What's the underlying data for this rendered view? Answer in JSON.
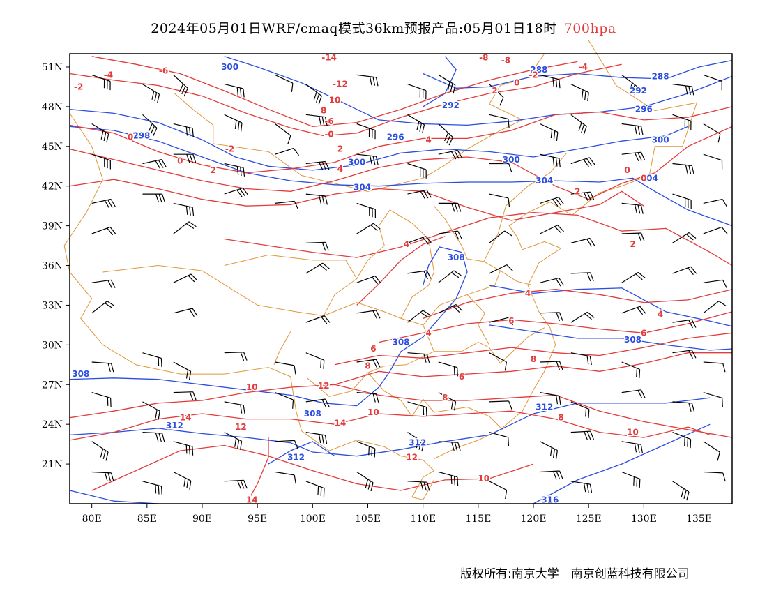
{
  "title": {
    "main": "2024年05月01日WRF/cmaq模式36km预报产品:05月01日18时",
    "level": "700hpa"
  },
  "axes": {
    "lat_labels": [
      "51N",
      "48N",
      "45N",
      "42N",
      "39N",
      "36N",
      "33N",
      "30N",
      "27N",
      "24N",
      "21N"
    ],
    "lon_labels": [
      "80E",
      "85E",
      "90E",
      "95E",
      "100E",
      "105E",
      "110E",
      "115E",
      "120E",
      "125E",
      "130E",
      "135E"
    ],
    "lon_range": [
      78,
      138
    ],
    "lat_range": [
      18,
      52
    ]
  },
  "colors": {
    "geopotential": "#2b4de0",
    "temperature": "#e23b3b",
    "border": "#e0963a",
    "barb": "#000000"
  },
  "contour_labels": {
    "geopotential": [
      {
        "text": "300",
        "lon": 92.5,
        "lat": 51.0
      },
      {
        "text": "288",
        "lon": 120.5,
        "lat": 50.8
      },
      {
        "text": "288",
        "lon": 131.5,
        "lat": 50.3
      },
      {
        "text": "292",
        "lon": 129.5,
        "lat": 49.2
      },
      {
        "text": "292",
        "lon": 112.5,
        "lat": 48.1
      },
      {
        "text": "296",
        "lon": 130.0,
        "lat": 47.8
      },
      {
        "text": "298",
        "lon": 84.5,
        "lat": 45.8
      },
      {
        "text": "296",
        "lon": 107.5,
        "lat": 45.7
      },
      {
        "text": "300",
        "lon": 131.5,
        "lat": 45.5
      },
      {
        "text": "300",
        "lon": 104.0,
        "lat": 43.8
      },
      {
        "text": "300",
        "lon": 118.0,
        "lat": 44.0
      },
      {
        "text": "304",
        "lon": 104.5,
        "lat": 41.9
      },
      {
        "text": "304",
        "lon": 121.0,
        "lat": 42.4
      },
      {
        "text": "304",
        "lon": 130.5,
        "lat": 42.6
      },
      {
        "text": "308",
        "lon": 113.0,
        "lat": 36.6
      },
      {
        "text": "308",
        "lon": 108.0,
        "lat": 30.2
      },
      {
        "text": "308",
        "lon": 129.0,
        "lat": 30.4
      },
      {
        "text": "308",
        "lon": 79.0,
        "lat": 27.8
      },
      {
        "text": "308",
        "lon": 100.0,
        "lat": 24.8
      },
      {
        "text": "312",
        "lon": 87.5,
        "lat": 23.9
      },
      {
        "text": "312",
        "lon": 98.5,
        "lat": 21.5
      },
      {
        "text": "312",
        "lon": 109.5,
        "lat": 22.6
      },
      {
        "text": "312",
        "lon": 121.0,
        "lat": 25.3
      },
      {
        "text": "316",
        "lon": 121.5,
        "lat": 18.3
      }
    ],
    "temperature": [
      {
        "text": "-14",
        "lon": 101.5,
        "lat": 51.7
      },
      {
        "text": "-8",
        "lon": 115.5,
        "lat": 51.7
      },
      {
        "text": "-8",
        "lon": 117.5,
        "lat": 51.5
      },
      {
        "text": "-4",
        "lon": 124.5,
        "lat": 51.0
      },
      {
        "text": "-2",
        "lon": 120.0,
        "lat": 50.4
      },
      {
        "text": "-6",
        "lon": 86.5,
        "lat": 50.7
      },
      {
        "text": "-4",
        "lon": 81.5,
        "lat": 50.4
      },
      {
        "text": "-2",
        "lon": 78.8,
        "lat": 49.5
      },
      {
        "text": "0",
        "lon": 118.5,
        "lat": 49.8
      },
      {
        "text": "2",
        "lon": 116.5,
        "lat": 49.2
      },
      {
        "text": "-12",
        "lon": 102.5,
        "lat": 49.7
      },
      {
        "text": "10",
        "lon": 102.0,
        "lat": 48.5
      },
      {
        "text": "8",
        "lon": 101.0,
        "lat": 47.7
      },
      {
        "text": "-6",
        "lon": 101.5,
        "lat": 46.9
      },
      {
        "text": "-0",
        "lon": 101.5,
        "lat": 45.9
      },
      {
        "text": "2",
        "lon": 102.5,
        "lat": 44.8
      },
      {
        "text": "0",
        "lon": 83.5,
        "lat": 45.7
      },
      {
        "text": "-2",
        "lon": 92.5,
        "lat": 44.8
      },
      {
        "text": "0",
        "lon": 88.0,
        "lat": 43.9
      },
      {
        "text": "2",
        "lon": 91.0,
        "lat": 43.2
      },
      {
        "text": "4",
        "lon": 102.5,
        "lat": 43.3
      },
      {
        "text": "4",
        "lon": 110.5,
        "lat": 45.5
      },
      {
        "text": "2",
        "lon": 124.0,
        "lat": 41.6
      },
      {
        "text": "0",
        "lon": 128.5,
        "lat": 43.2
      },
      {
        "text": "0",
        "lon": 130.0,
        "lat": 42.6
      },
      {
        "text": "2",
        "lon": 129.0,
        "lat": 37.6
      },
      {
        "text": "4",
        "lon": 108.5,
        "lat": 37.6
      },
      {
        "text": "4",
        "lon": 119.5,
        "lat": 33.9
      },
      {
        "text": "4",
        "lon": 131.5,
        "lat": 32.3
      },
      {
        "text": "6",
        "lon": 130.0,
        "lat": 30.9
      },
      {
        "text": "6",
        "lon": 118.0,
        "lat": 31.8
      },
      {
        "text": "4",
        "lon": 110.5,
        "lat": 30.9
      },
      {
        "text": "6",
        "lon": 105.5,
        "lat": 29.7
      },
      {
        "text": "8",
        "lon": 105.0,
        "lat": 28.4
      },
      {
        "text": "8",
        "lon": 120.0,
        "lat": 28.9
      },
      {
        "text": "6",
        "lon": 113.5,
        "lat": 27.6
      },
      {
        "text": "8",
        "lon": 112.0,
        "lat": 26.0
      },
      {
        "text": "12",
        "lon": 101.0,
        "lat": 26.9
      },
      {
        "text": "10",
        "lon": 94.5,
        "lat": 26.8
      },
      {
        "text": "10",
        "lon": 105.5,
        "lat": 24.9
      },
      {
        "text": "14",
        "lon": 88.5,
        "lat": 24.5
      },
      {
        "text": "14",
        "lon": 102.5,
        "lat": 24.1
      },
      {
        "text": "12",
        "lon": 93.5,
        "lat": 23.8
      },
      {
        "text": "8",
        "lon": 122.5,
        "lat": 24.5
      },
      {
        "text": "10",
        "lon": 129.0,
        "lat": 23.4
      },
      {
        "text": "12",
        "lon": 109.0,
        "lat": 21.5
      },
      {
        "text": "10",
        "lon": 115.5,
        "lat": 19.9
      },
      {
        "text": "14",
        "lon": 94.5,
        "lat": 18.3
      }
    ]
  },
  "footer": {
    "copyright": "版权所有:南京大学",
    "company": "南京创蓝科技有限公司"
  }
}
